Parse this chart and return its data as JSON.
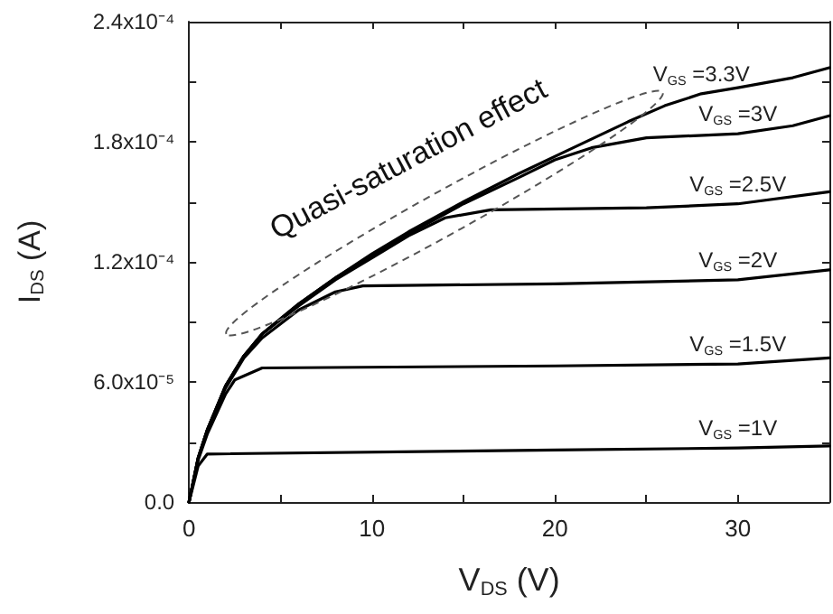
{
  "chart_data": {
    "type": "line",
    "xlabel": "V$_{DS}$ (V)",
    "ylabel": "I$_{DS}$ (A)",
    "xlim": [
      0,
      35
    ],
    "xticks": [
      0,
      {
        "value": 5,
        "label": null
      },
      10,
      {
        "value": 15,
        "label": null
      },
      20,
      {
        "value": 25,
        "label": null
      },
      30,
      {
        "value": 35,
        "label": null
      }
    ],
    "ylim": [
      0,
      0.00024
    ],
    "yticks": [
      {
        "value": 0,
        "label": "0.0"
      },
      {
        "value": 3e-05,
        "label": null
      },
      {
        "value": 6e-05,
        "label": "6.0x10⁻⁵"
      },
      {
        "value": 9e-05,
        "label": null
      },
      {
        "value": 0.00012,
        "label": "1.2x10⁻⁴"
      },
      {
        "value": 0.00015,
        "label": null
      },
      {
        "value": 0.00018,
        "label": "1.8x10⁻⁴"
      },
      {
        "value": 0.00021,
        "label": null
      },
      {
        "value": 0.00024,
        "label": "2.4x10⁻⁴"
      }
    ],
    "grid": false,
    "legend": false,
    "marker": "none",
    "line_style": "solid",
    "annotations": [
      "Quasi-saturation effect"
    ],
    "series": [
      {
        "name": "V$_{GS}$ =3.3V",
        "color": "#000000",
        "x": [
          0,
          0.5,
          1,
          2,
          3,
          4,
          6,
          8,
          10,
          12,
          15,
          18,
          21,
          24,
          26,
          28,
          30,
          33,
          35
        ],
        "values": [
          0,
          2.2e-05,
          3.6e-05,
          5.8e-05,
          7.3e-05,
          8.4e-05,
          9.9e-05,
          0.000112,
          0.000124,
          0.000135,
          0.00015,
          0.000164,
          0.000177,
          0.00019,
          0.000198,
          0.000204,
          0.000207,
          0.000212,
          0.000217
        ]
      },
      {
        "name": "V$_{GS}$ =3V",
        "color": "#000000",
        "x": [
          0,
          0.5,
          1,
          2,
          3,
          4,
          6,
          8,
          10,
          12,
          15,
          18,
          20,
          22,
          25,
          30,
          33,
          35
        ],
        "values": [
          0,
          2.2e-05,
          3.6e-05,
          5.8e-05,
          7.3e-05,
          8.4e-05,
          9.9e-05,
          0.000112,
          0.000123,
          0.000134,
          0.000149,
          0.000162,
          0.000171,
          0.000177,
          0.000182,
          0.000184,
          0.000188,
          0.000193
        ]
      },
      {
        "name": "V$_{GS}$ =2.5V",
        "color": "#000000",
        "x": [
          0,
          0.5,
          1,
          2,
          3,
          4,
          6,
          8,
          10,
          12,
          14,
          16.5,
          25,
          30,
          35
        ],
        "values": [
          0,
          2.2e-05,
          3.6e-05,
          5.8e-05,
          7.3e-05,
          8.4e-05,
          9.8e-05,
          0.000111,
          0.000122,
          0.000133,
          0.000142,
          0.000146,
          0.000147,
          0.000149,
          0.000155
        ]
      },
      {
        "name": "V$_{GS}$ =2V",
        "color": "#000000",
        "x": [
          0,
          0.5,
          1,
          2,
          3,
          4,
          6,
          8,
          9.5,
          20,
          30,
          35
        ],
        "values": [
          0,
          2.2e-05,
          3.6e-05,
          5.7e-05,
          7.2e-05,
          8.2e-05,
          9.6e-05,
          0.000105,
          0.000108,
          0.000109,
          0.000111,
          0.000116
        ]
      },
      {
        "name": "V$_{GS}$ =1.5V",
        "color": "#000000",
        "x": [
          0,
          0.5,
          1,
          2,
          2.5,
          4,
          20,
          30,
          35
        ],
        "values": [
          0,
          2.1e-05,
          3.4e-05,
          5.4e-05,
          6.1e-05,
          6.7e-05,
          6.8e-05,
          6.9e-05,
          7.2e-05
        ]
      },
      {
        "name": "V$_{GS}$ =1V",
        "color": "#000000",
        "x": [
          0,
          0.5,
          1,
          20,
          30,
          35
        ],
        "values": [
          0,
          1.8e-05,
          2.4e-05,
          2.6e-05,
          2.7e-05,
          2.8e-05
        ]
      }
    ]
  }
}
